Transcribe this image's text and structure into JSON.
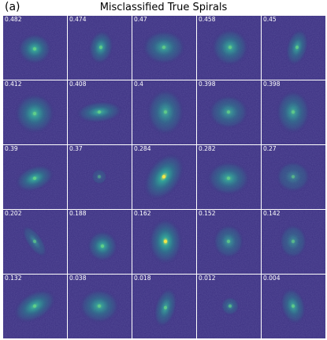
{
  "figure": {
    "panel_label": "(a)",
    "title": "Misclassified True Spirals"
  },
  "tiles": [
    {
      "score": "0.482"
    },
    {
      "score": "0.474"
    },
    {
      "score": "0.47"
    },
    {
      "score": "0.458"
    },
    {
      "score": "0.45"
    },
    {
      "score": "0.412"
    },
    {
      "score": "0.408"
    },
    {
      "score": "0.4"
    },
    {
      "score": "0.398"
    },
    {
      "score": "0.398"
    },
    {
      "score": "0.39"
    },
    {
      "score": "0.37"
    },
    {
      "score": "0.284"
    },
    {
      "score": "0.282"
    },
    {
      "score": "0.27"
    },
    {
      "score": "0.202"
    },
    {
      "score": "0.188"
    },
    {
      "score": "0.162"
    },
    {
      "score": "0.152"
    },
    {
      "score": "0.142"
    },
    {
      "score": "0.132"
    },
    {
      "score": "0.038"
    },
    {
      "score": "0.018"
    },
    {
      "score": "0.012"
    },
    {
      "score": "0.004"
    }
  ]
}
